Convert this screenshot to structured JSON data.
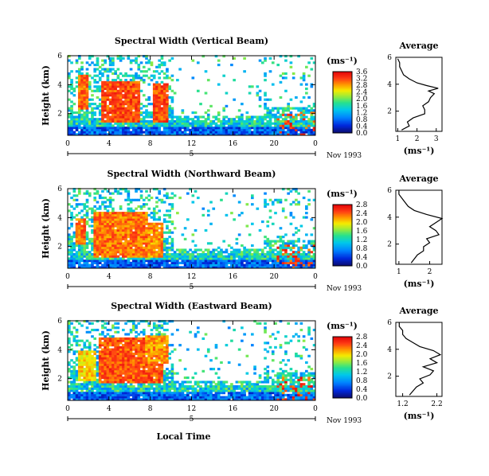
{
  "chart_data": [
    {
      "type": "heatmap",
      "title": "Spectral Width (Vertical Beam)",
      "ylabel": "Height (km)",
      "x_ticks": [
        "0",
        "4",
        "8",
        "12",
        "16",
        "20",
        "0"
      ],
      "y_ticks": [
        "2",
        "4",
        "6"
      ],
      "xlim": [
        0,
        24
      ],
      "ylim": [
        0.5,
        6
      ],
      "day_label": "5",
      "date_label": "Nov 1993",
      "colorbar": {
        "unit": "(ms⁻¹)",
        "ticks": [
          "0.0",
          "0.4",
          "0.8",
          "1.2",
          "1.6",
          "2.0",
          "2.4",
          "2.8",
          "3.2",
          "3.6"
        ],
        "range": [
          0,
          3.6
        ]
      },
      "average_profile": {
        "title": "Average",
        "xlabel": "(ms⁻¹)",
        "x_ticks": [
          "1",
          "2",
          "3"
        ],
        "xlim": [
          0.9,
          3.3
        ],
        "y_ticks": [
          "2",
          "4",
          "6"
        ],
        "ylim": [
          0.5,
          6
        ],
        "height_km": [
          0.6,
          0.9,
          1.2,
          1.5,
          1.8,
          2.1,
          2.4,
          2.7,
          3.0,
          3.3,
          3.5,
          3.7,
          3.9,
          4.1,
          4.4,
          4.7,
          5.0,
          5.3,
          5.6,
          5.9
        ],
        "width_ms": [
          1.2,
          1.6,
          1.5,
          1.8,
          2.4,
          2.4,
          2.3,
          2.6,
          2.7,
          2.9,
          2.6,
          3.1,
          2.5,
          2.0,
          1.6,
          1.3,
          1.2,
          1.1,
          1.1,
          1.0
        ]
      },
      "features": [
        {
          "t0": 1.0,
          "t1": 1.8,
          "h0": 2.2,
          "h1": 4.6,
          "level": 3.4
        },
        {
          "t0": 3.2,
          "t1": 6.8,
          "h0": 1.3,
          "h1": 4.2,
          "level": 3.5
        },
        {
          "t0": 8.2,
          "t1": 9.6,
          "h0": 1.3,
          "h1": 4.0,
          "level": 3.5
        }
      ]
    },
    {
      "type": "heatmap",
      "title": "Spectral Width (Northward Beam)",
      "ylabel": "Height (km)",
      "x_ticks": [
        "0",
        "4",
        "8",
        "12",
        "16",
        "20",
        "0"
      ],
      "y_ticks": [
        "2",
        "4",
        "6"
      ],
      "xlim": [
        0,
        24
      ],
      "ylim": [
        0.5,
        6
      ],
      "day_label": "5",
      "date_label": "Nov 1993",
      "colorbar": {
        "unit": "(ms⁻¹)",
        "ticks": [
          "0.0",
          "0.4",
          "0.8",
          "1.2",
          "1.6",
          "2.0",
          "2.4",
          "2.8"
        ],
        "range": [
          0,
          2.8
        ]
      },
      "average_profile": {
        "title": "Average",
        "xlabel": "(ms⁻¹)",
        "x_ticks": [
          "1",
          "2"
        ],
        "xlim": [
          0.9,
          2.4
        ],
        "y_ticks": [
          "2",
          "4",
          "6"
        ],
        "ylim": [
          0.5,
          6
        ],
        "height_km": [
          0.6,
          0.9,
          1.2,
          1.5,
          1.8,
          2.1,
          2.4,
          2.7,
          3.0,
          3.3,
          3.6,
          3.9,
          4.2,
          4.5,
          4.8,
          5.1,
          5.4,
          5.7,
          6.0
        ],
        "width_ms": [
          1.4,
          1.5,
          1.6,
          1.8,
          1.8,
          2.0,
          1.9,
          2.3,
          2.2,
          2.0,
          2.2,
          2.4,
          1.9,
          1.5,
          1.3,
          1.2,
          1.1,
          1.0,
          1.0
        ]
      },
      "features": [
        {
          "t0": 0.6,
          "t1": 1.6,
          "h0": 2.0,
          "h1": 3.9,
          "level": 2.6
        },
        {
          "t0": 2.5,
          "t1": 7.5,
          "h0": 1.2,
          "h1": 4.3,
          "level": 2.6
        },
        {
          "t0": 7.6,
          "t1": 9.0,
          "h0": 1.2,
          "h1": 3.6,
          "level": 2.5
        }
      ]
    },
    {
      "type": "heatmap",
      "title": "Spectral Width (Eastward Beam)",
      "ylabel": "Height (km)",
      "x_ticks": [
        "0",
        "4",
        "8",
        "12",
        "16",
        "20",
        "0"
      ],
      "y_ticks": [
        "2",
        "4",
        "6"
      ],
      "xlim": [
        0,
        24
      ],
      "ylim": [
        0.5,
        6
      ],
      "day_label": "5",
      "date_label": "Nov 1993",
      "x_axis_label": "Local Time",
      "colorbar": {
        "unit": "(ms⁻¹)",
        "ticks": [
          "0.0",
          "0.4",
          "0.8",
          "1.2",
          "1.6",
          "2.0",
          "2.4",
          "2.8"
        ],
        "range": [
          0,
          2.8
        ]
      },
      "average_profile": {
        "title": "Average",
        "xlabel": "(ms⁻¹)",
        "x_ticks": [
          "1.2",
          "2.2"
        ],
        "xlim": [
          1.0,
          2.35
        ],
        "y_ticks": [
          "2",
          "4",
          "6"
        ],
        "ylim": [
          0.5,
          6
        ],
        "height_km": [
          0.6,
          0.9,
          1.2,
          1.5,
          1.8,
          2.1,
          2.4,
          2.7,
          3.0,
          3.3,
          3.6,
          3.9,
          4.2,
          4.5,
          4.8,
          5.1,
          5.4,
          5.7,
          6.0
        ],
        "width_ms": [
          1.4,
          1.5,
          1.6,
          1.8,
          1.7,
          2.0,
          2.1,
          1.8,
          2.2,
          2.0,
          2.3,
          2.1,
          1.7,
          1.5,
          1.3,
          1.2,
          1.2,
          1.1,
          1.1
        ]
      },
      "features": [
        {
          "t0": 1.0,
          "t1": 2.5,
          "h0": 1.8,
          "h1": 3.8,
          "level": 2.3
        },
        {
          "t0": 3.0,
          "t1": 9.0,
          "h0": 1.6,
          "h1": 4.8,
          "level": 2.7
        },
        {
          "t0": 7.5,
          "t1": 9.5,
          "h0": 3.0,
          "h1": 5.0,
          "level": 2.5
        }
      ]
    }
  ]
}
